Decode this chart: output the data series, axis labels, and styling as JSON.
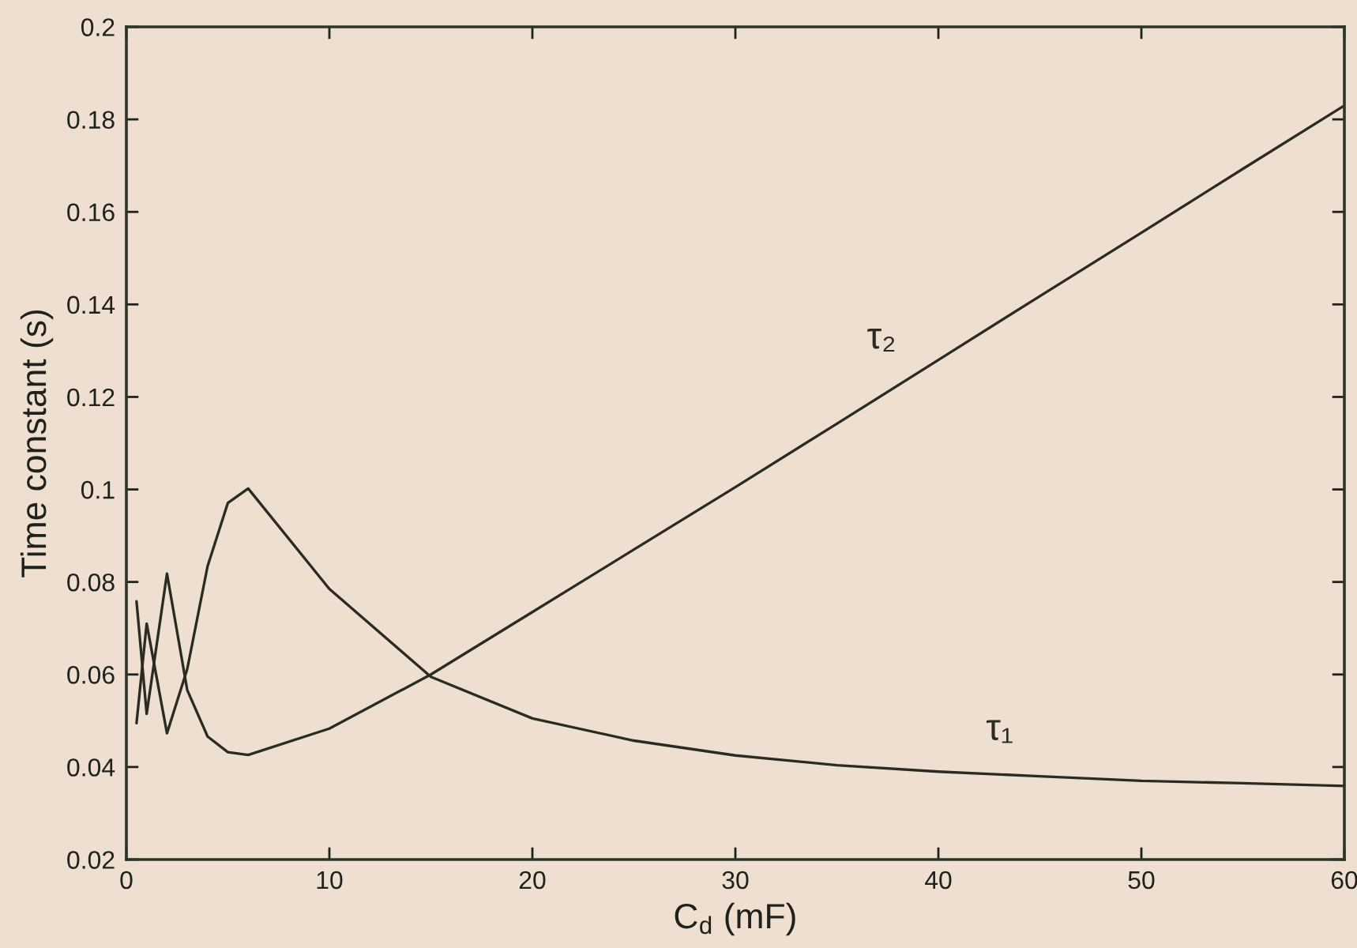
{
  "chart_data": {
    "type": "line",
    "xlabel": "C$_{d}$ (mF)",
    "ylabel": "Time constant (s)",
    "x": [
      0.5,
      1,
      2,
      3,
      4,
      5,
      6,
      10,
      15,
      20,
      25,
      30,
      35,
      40,
      45,
      50,
      55,
      60
    ],
    "series": [
      {
        "name": "τ₁",
        "color": "#2a2c24",
        "values": [
          0.0495,
          0.071,
          0.0473,
          0.0612,
          0.0834,
          0.0971,
          0.1002,
          0.0785,
          0.0595,
          0.0505,
          0.0457,
          0.0425,
          0.0404,
          0.039,
          0.038,
          0.037,
          0.0365,
          0.0359
        ]
      },
      {
        "name": "τ₂",
        "color": "#2a2c24",
        "values": [
          0.0758,
          0.0515,
          0.0818,
          0.0566,
          0.0466,
          0.0432,
          0.0426,
          0.0483,
          0.06,
          0.0735,
          0.087,
          0.1005,
          0.1142,
          0.128,
          0.1418,
          0.1555,
          0.1693,
          0.183
        ]
      }
    ],
    "xlim": [
      0,
      60
    ],
    "xticks": [
      0,
      10,
      20,
      30,
      40,
      50,
      60
    ],
    "ylim": [
      0.02,
      0.2
    ],
    "yticks": [
      0.02,
      0.04,
      0.06,
      0.08,
      0.1,
      0.12,
      0.14,
      0.16,
      0.18,
      0.2
    ],
    "grid": false,
    "legend": false
  }
}
